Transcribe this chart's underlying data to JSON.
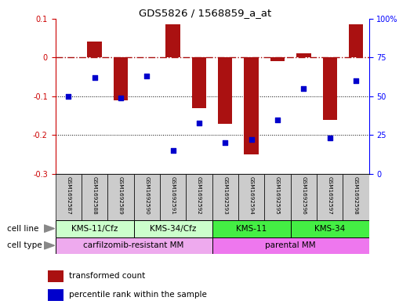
{
  "title": "GDS5826 / 1568859_a_at",
  "samples": [
    "GSM1692587",
    "GSM1692588",
    "GSM1692589",
    "GSM1692590",
    "GSM1692591",
    "GSM1692592",
    "GSM1692593",
    "GSM1692594",
    "GSM1692595",
    "GSM1692596",
    "GSM1692597",
    "GSM1692598"
  ],
  "transformed_count": [
    0.0,
    0.04,
    -0.11,
    0.0,
    0.085,
    -0.13,
    -0.17,
    -0.25,
    -0.01,
    0.01,
    -0.16,
    0.085
  ],
  "percentile_rank": [
    50,
    62,
    49,
    63,
    15,
    33,
    20,
    22,
    35,
    55,
    23,
    60
  ],
  "ylim_left": [
    -0.3,
    0.1
  ],
  "ylim_right": [
    0,
    100
  ],
  "yticks_left": [
    -0.3,
    -0.2,
    -0.1,
    0.0,
    0.1
  ],
  "ytick_labels_left": [
    "-0.3",
    "-0.2",
    "-0.1",
    "0",
    "0.1"
  ],
  "yticks_right": [
    0,
    25,
    50,
    75,
    100
  ],
  "ytick_labels_right": [
    "0",
    "25",
    "50",
    "75",
    "100%"
  ],
  "hline_y": 0.0,
  "dotted_lines": [
    -0.1,
    -0.2
  ],
  "bar_color": "#aa1111",
  "dot_color": "#0000cc",
  "cell_line_groups": [
    {
      "label": "KMS-11/Cfz",
      "start": 0,
      "end": 2,
      "color": "#ccffcc"
    },
    {
      "label": "KMS-34/Cfz",
      "start": 3,
      "end": 5,
      "color": "#ccffcc"
    },
    {
      "label": "KMS-11",
      "start": 6,
      "end": 8,
      "color": "#44ee44"
    },
    {
      "label": "KMS-34",
      "start": 9,
      "end": 11,
      "color": "#44ee44"
    }
  ],
  "cell_type_groups": [
    {
      "label": "carfilzomib-resistant MM",
      "start": 0,
      "end": 5,
      "color": "#ee88ee"
    },
    {
      "label": "parental MM",
      "start": 6,
      "end": 11,
      "color": "#ee88ee"
    }
  ],
  "cell_line_row_label": "cell line",
  "cell_type_row_label": "cell type",
  "legend_items": [
    {
      "label": "transformed count",
      "color": "#aa1111"
    },
    {
      "label": "percentile rank within the sample",
      "color": "#0000cc"
    }
  ],
  "background_color": "#ffffff",
  "sample_box_color": "#cccccc"
}
